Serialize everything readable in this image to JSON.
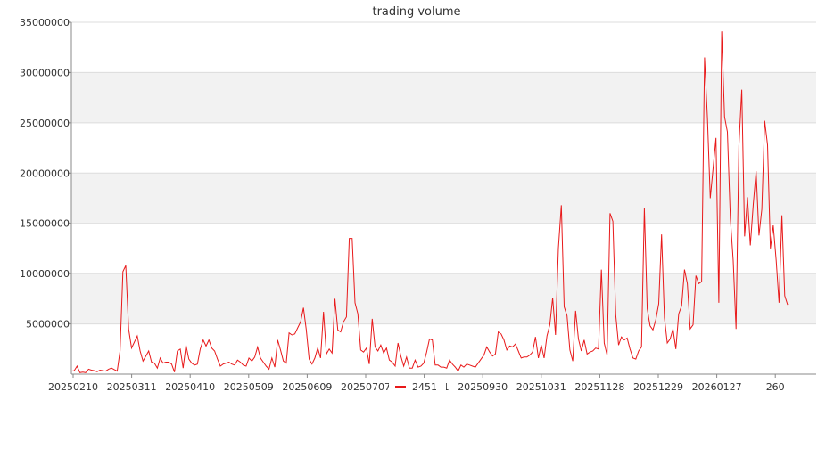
{
  "chart_data": {
    "type": "line",
    "title": "trading volume",
    "xlabel": "",
    "ylabel": "",
    "ylim": [
      0,
      35000000
    ],
    "y_ticks": [
      5000000,
      10000000,
      15000000,
      20000000,
      25000000,
      30000000,
      35000000
    ],
    "y_tick_labels": [
      "5000000",
      "10000000",
      "15000000",
      "20000000",
      "25000000",
      "30000000",
      "35000000"
    ],
    "x_tick_labels": [
      "20250210",
      "20250311",
      "20250410",
      "20250509",
      "20250609",
      "20250707",
      "20250901",
      "20250930",
      "20251031",
      "20251128",
      "20251229",
      "20260127",
      "260"
    ],
    "grid": true,
    "alternating_bands": true,
    "legend_position": "bottom",
    "series": [
      {
        "name": "2451",
        "color": "#e8191a",
        "values": [
          300000,
          350000,
          800000,
          150000,
          200000,
          150000,
          500000,
          400000,
          350000,
          250000,
          400000,
          350000,
          300000,
          500000,
          600000,
          450000,
          300000,
          2300000,
          10200000,
          10800000,
          4500000,
          2600000,
          3200000,
          3800000,
          2300000,
          1300000,
          1800000,
          2300000,
          1200000,
          1100000,
          600000,
          1600000,
          1100000,
          1200000,
          1200000,
          1000000,
          200000,
          2300000,
          2500000,
          600000,
          2900000,
          1500000,
          1100000,
          900000,
          1000000,
          2500000,
          3400000,
          2800000,
          3400000,
          2600000,
          2300000,
          1500000,
          800000,
          1000000,
          1100000,
          1200000,
          1000000,
          900000,
          1400000,
          1200000,
          900000,
          800000,
          1600000,
          1300000,
          1700000,
          2700000,
          1600000,
          1200000,
          800000,
          500000,
          1600000,
          700000,
          3400000,
          2400000,
          1300000,
          1100000,
          4100000,
          3900000,
          4000000,
          4600000,
          5200000,
          6600000,
          4400000,
          1500000,
          1000000,
          1600000,
          2600000,
          1600000,
          6200000,
          2000000,
          2500000,
          2100000,
          7500000,
          4400000,
          4200000,
          5200000,
          5700000,
          13500000,
          13500000,
          7100000,
          6000000,
          2400000,
          2200000,
          2600000,
          1000000,
          5500000,
          2700000,
          2300000,
          2900000,
          2100000,
          2600000,
          1400000,
          1200000,
          800000,
          3100000,
          1800000,
          800000,
          1700000,
          600000,
          600000,
          1400000,
          700000,
          800000,
          1100000,
          2200000,
          3500000,
          3400000,
          900000,
          900000,
          700000,
          700000,
          600000,
          1400000,
          1000000,
          700000,
          300000,
          900000,
          700000,
          1000000,
          900000,
          800000,
          700000,
          1100000,
          1500000,
          1900000,
          2700000,
          2200000,
          1800000,
          2000000,
          4200000,
          4000000,
          3400000,
          2400000,
          2800000,
          2700000,
          3000000,
          2300000,
          1600000,
          1700000,
          1700000,
          1900000,
          2200000,
          3700000,
          1600000,
          2900000,
          1600000,
          3800000,
          4900000,
          7600000,
          3900000,
          12500000,
          16800000,
          6700000,
          5800000,
          2400000,
          1300000,
          6300000,
          3500000,
          2300000,
          3400000,
          2000000,
          2200000,
          2300000,
          2600000,
          2500000,
          10400000,
          3100000,
          1900000,
          16000000,
          15200000,
          5900000,
          2900000,
          3700000,
          3400000,
          3600000,
          2500000,
          1600000,
          1500000,
          2300000,
          2700000,
          16500000,
          6500000,
          4800000,
          4400000,
          5400000,
          7000000,
          13900000,
          5600000,
          3100000,
          3500000,
          4500000,
          2500000,
          6000000,
          6800000,
          10400000,
          9000000,
          4500000,
          4900000,
          9800000,
          9000000,
          9200000,
          31500000,
          25500000,
          17500000,
          20500000,
          23500000,
          7100000,
          34100000,
          25600000,
          24100000,
          15500000,
          11300000,
          4500000,
          22700000,
          28300000,
          13700000,
          17600000,
          12800000,
          16900000,
          20200000,
          13800000,
          16400000,
          25200000,
          22800000,
          12500000,
          14800000,
          11300000,
          7100000,
          15800000,
          7800000,
          6900000
        ]
      }
    ]
  }
}
